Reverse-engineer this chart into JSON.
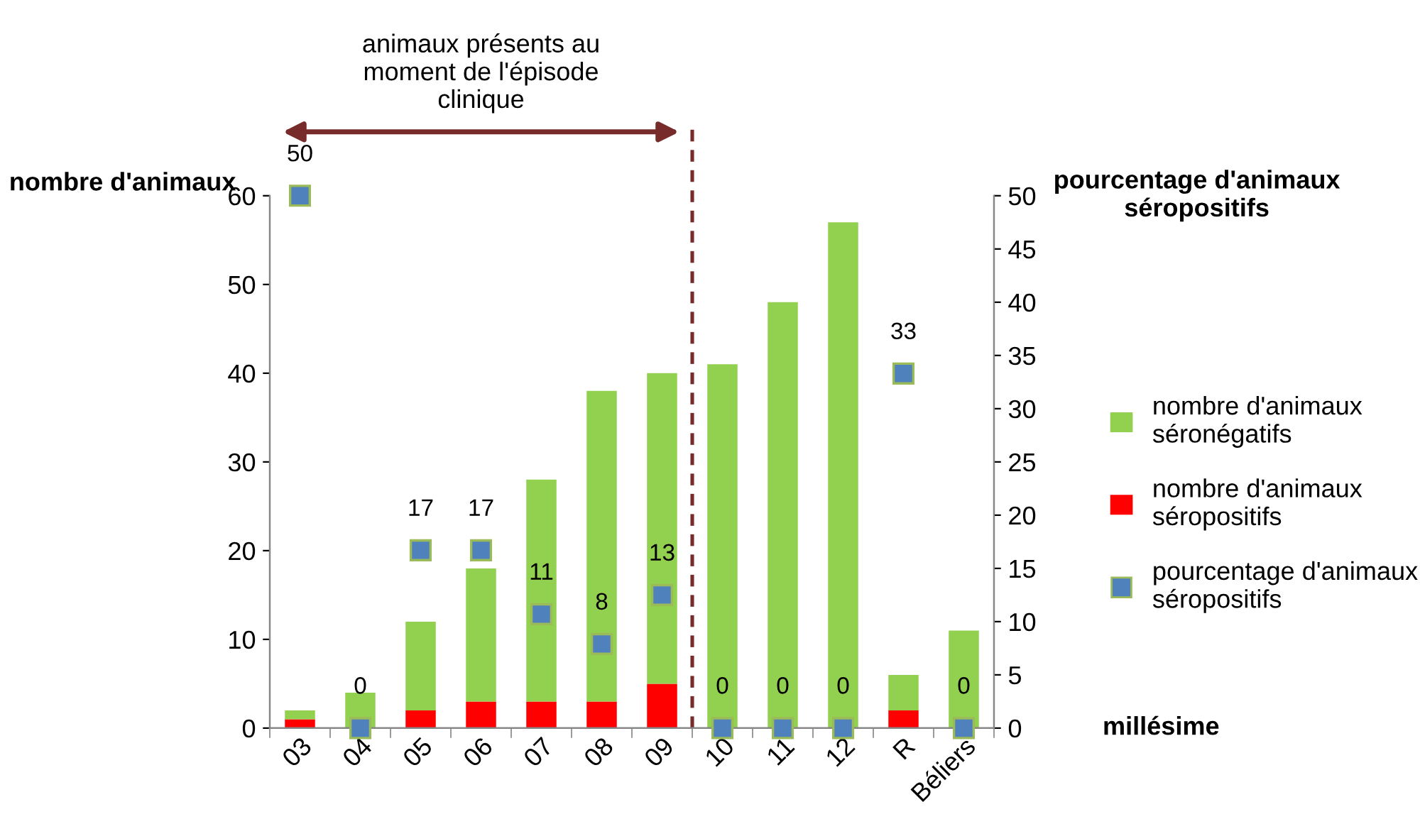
{
  "chart_data": {
    "type": "bar",
    "stacked": true,
    "categories": [
      "03",
      "04",
      "05",
      "06",
      "07",
      "08",
      "09",
      "10",
      "11",
      "12",
      "R",
      "Béliers"
    ],
    "series": [
      {
        "name": "nombre d'animaux séropositifs",
        "color": "#ff0000",
        "values": [
          1,
          0,
          2,
          3,
          3,
          3,
          5,
          0,
          0,
          0,
          2,
          0
        ]
      },
      {
        "name": "nombre d'animaux séronégatifs",
        "color": "#92d050",
        "values": [
          1,
          4,
          10,
          15,
          25,
          35,
          35,
          41,
          48,
          57,
          4,
          11
        ]
      },
      {
        "name": "pourcentage d'animaux séropositifs",
        "type": "scatter",
        "axis": "y2",
        "color": "#4f81bd",
        "marker": "square",
        "values": [
          50,
          0,
          16.7,
          16.7,
          10.7,
          7.9,
          12.5,
          0,
          0,
          0,
          33.3,
          0
        ],
        "value_labels": [
          "50",
          "0",
          "17",
          "17",
          "11",
          "8",
          "13",
          "0",
          "0",
          "0",
          "33",
          "0"
        ]
      }
    ],
    "ylabel": "nombre d'animaux",
    "y2label": "pourcentage d'animaux séropositifs",
    "xlabel": "millésime",
    "ylim": [
      0,
      60
    ],
    "yticks": [
      0,
      10,
      20,
      30,
      40,
      50,
      60
    ],
    "y2lim": [
      0,
      50
    ],
    "y2ticks": [
      0,
      5,
      10,
      15,
      20,
      25,
      30,
      35,
      40,
      45,
      50
    ],
    "annotations": [
      "animaux présents au moment de l'épisode clinique"
    ],
    "legend": "right",
    "grid": false
  }
}
